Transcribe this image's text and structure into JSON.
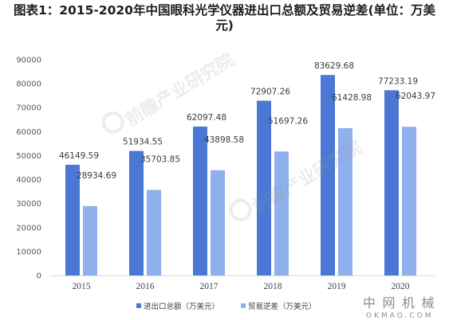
{
  "chart_data": {
    "type": "bar",
    "title": "图表1：2015-2020年中国眼科光学仪器进出口总额及贸易逆差(单位：万美元)",
    "categories": [
      "2015",
      "2016",
      "2017",
      "2018",
      "2019",
      "2020"
    ],
    "series": [
      {
        "name": "进出口总额（万美元）",
        "values": [
          46149.59,
          51934.55,
          62097.48,
          72907.26,
          83629.68,
          77233.19
        ],
        "color": "#4A78D4"
      },
      {
        "name": "贸易逆差（万美元）",
        "values": [
          28934.69,
          35703.85,
          43898.58,
          51697.26,
          61428.98,
          62043.97
        ],
        "color": "#8EB0EC"
      }
    ],
    "ylim": [
      0,
      90000
    ],
    "yticks": [
      0,
      10000,
      20000,
      30000,
      40000,
      50000,
      60000,
      70000,
      80000,
      90000
    ],
    "grid": false,
    "legend": "bottom",
    "data_labels": true
  },
  "watermark": {
    "text": "前瞻产业研究院"
  },
  "logo": {
    "cn": "中网机械",
    "en": "OKMAO.COM"
  }
}
